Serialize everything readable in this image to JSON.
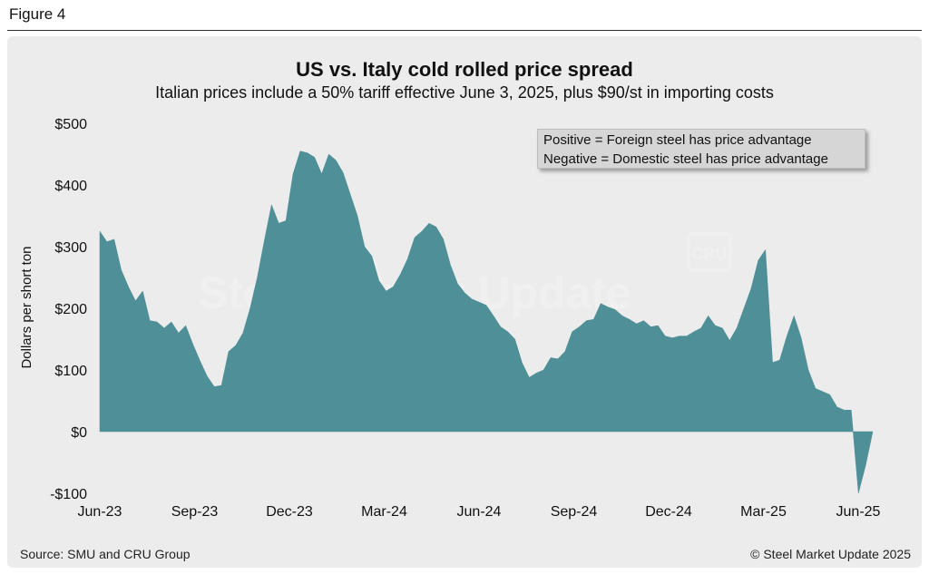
{
  "figure_label": "Figure 4",
  "source": "Source: SMU and CRU Group",
  "copyright": "© Steel Market Update 2025",
  "legend_note": {
    "line1": "Positive = Foreign steel has price advantage",
    "line2": "Negative = Domestic steel has price advantage"
  },
  "watermark": {
    "text": "Steel Market Update",
    "badge": "CRU"
  },
  "colors": {
    "area": "#4f8f97",
    "panel": "#ececec",
    "legend_box": "#d6d6d6"
  },
  "chart_data": {
    "type": "area",
    "title": "US vs. Italy cold rolled price spread",
    "subtitle": "Italian prices include a 50% tariff effective June 3, 2025, plus $90/st in importing costs",
    "ylabel": "Dollars per short ton",
    "xlabel": "",
    "ylim": [
      -100,
      500
    ],
    "yticks": [
      -100,
      0,
      100,
      200,
      300,
      400,
      500
    ],
    "ytick_labels": [
      "-$100",
      "$0",
      "$100",
      "$200",
      "$300",
      "$400",
      "$500"
    ],
    "xticks": [
      "Jun-23",
      "Sep-23",
      "Dec-23",
      "Mar-24",
      "Jun-24",
      "Sep-24",
      "Dec-24",
      "Mar-25",
      "Jun-25"
    ],
    "grid": false,
    "legend": "none",
    "series": [
      {
        "values": [
          325,
          308,
          312,
          262,
          235,
          212,
          228,
          180,
          178,
          168,
          178,
          160,
          172,
          142,
          115,
          90,
          73,
          75,
          130,
          140,
          160,
          200,
          250,
          310,
          368,
          338,
          342,
          418,
          455,
          452,
          445,
          418,
          450,
          440,
          420,
          385,
          350,
          300,
          285,
          245,
          228,
          235,
          255,
          280,
          315,
          325,
          338,
          332,
          312,
          270,
          240,
          225,
          215,
          210,
          205,
          188,
          170,
          162,
          150,
          112,
          88,
          95,
          100,
          120,
          118,
          130,
          162,
          170,
          180,
          182,
          208,
          202,
          198,
          188,
          182,
          175,
          180,
          170,
          172,
          155,
          152,
          155,
          155,
          162,
          168,
          188,
          172,
          168,
          148,
          168,
          200,
          232,
          278,
          295,
          112,
          116,
          155,
          188,
          152,
          100,
          70,
          65,
          60,
          40,
          35,
          35,
          -100,
          -55,
          0
        ]
      }
    ]
  }
}
